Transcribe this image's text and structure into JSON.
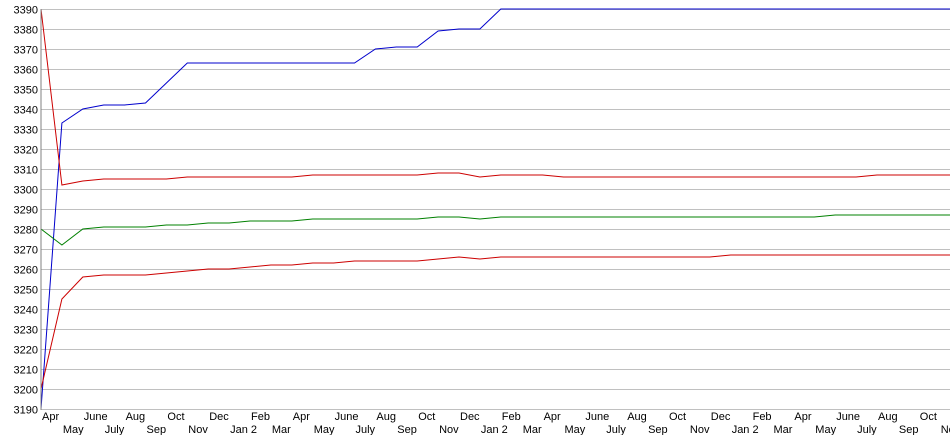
{
  "chart_data": {
    "type": "line",
    "title": "",
    "xlabel": "",
    "ylabel": "",
    "ylim": [
      3190,
      3390
    ],
    "y_ticks": [
      3190,
      3200,
      3210,
      3220,
      3230,
      3240,
      3250,
      3260,
      3270,
      3280,
      3290,
      3300,
      3310,
      3320,
      3330,
      3340,
      3350,
      3360,
      3370,
      3380,
      3390
    ],
    "grid": "horizontal",
    "legend": "none",
    "categories": [
      "Apr",
      "May",
      "June",
      "July",
      "Aug",
      "Sep",
      "Oct",
      "Nov",
      "Dec",
      "Jan  2",
      "Feb",
      "Mar",
      "Apr",
      "May",
      "June",
      "July",
      "Aug",
      "Sep",
      "Oct",
      "Nov",
      "Dec",
      "Jan  2",
      "Feb",
      "Mar",
      "Apr",
      "May",
      "June",
      "July",
      "Aug",
      "Sep",
      "Oct",
      "Nov",
      "Dec",
      "Jan  2",
      "Feb",
      "Mar",
      "Apr",
      "May",
      "June",
      "July",
      "Aug",
      "Sep",
      "Oct",
      "Nov"
    ],
    "series": [
      {
        "color": "#0000cc",
        "values": [
          3190,
          3333,
          3340,
          3342,
          3342,
          3343,
          3353,
          3363,
          3363,
          3363,
          3363,
          3363,
          3363,
          3363,
          3363,
          3363,
          3370,
          3371,
          3371,
          3379,
          3380,
          3380,
          3390,
          3390,
          3390,
          3390,
          3390,
          3390,
          3390,
          3390,
          3390,
          3390,
          3390,
          3390,
          3390,
          3390,
          3390,
          3390,
          3390,
          3390,
          3390,
          3390,
          3390,
          3390
        ]
      },
      {
        "color": "#cc0000",
        "values": [
          3390,
          3302,
          3304,
          3305,
          3305,
          3305,
          3305,
          3306,
          3306,
          3306,
          3306,
          3306,
          3306,
          3307,
          3307,
          3307,
          3307,
          3307,
          3307,
          3308,
          3308,
          3306,
          3307,
          3307,
          3307,
          3306,
          3306,
          3306,
          3306,
          3306,
          3306,
          3306,
          3306,
          3306,
          3306,
          3306,
          3306,
          3306,
          3306,
          3306,
          3307,
          3307,
          3307,
          3307
        ]
      },
      {
        "color": "#008000",
        "values": [
          3280,
          3272,
          3280,
          3281,
          3281,
          3281,
          3282,
          3282,
          3283,
          3283,
          3284,
          3284,
          3284,
          3285,
          3285,
          3285,
          3285,
          3285,
          3285,
          3286,
          3286,
          3285,
          3286,
          3286,
          3286,
          3286,
          3286,
          3286,
          3286,
          3286,
          3286,
          3286,
          3286,
          3286,
          3286,
          3286,
          3286,
          3286,
          3287,
          3287,
          3287,
          3287,
          3287,
          3287
        ]
      },
      {
        "color": "#cc0000",
        "values": [
          3200,
          3245,
          3256,
          3257,
          3257,
          3257,
          3258,
          3259,
          3260,
          3260,
          3261,
          3262,
          3262,
          3263,
          3263,
          3264,
          3264,
          3264,
          3264,
          3265,
          3266,
          3265,
          3266,
          3266,
          3266,
          3266,
          3266,
          3266,
          3266,
          3266,
          3266,
          3266,
          3266,
          3267,
          3267,
          3267,
          3267,
          3267,
          3267,
          3267,
          3267,
          3267,
          3267,
          3267
        ]
      }
    ]
  }
}
